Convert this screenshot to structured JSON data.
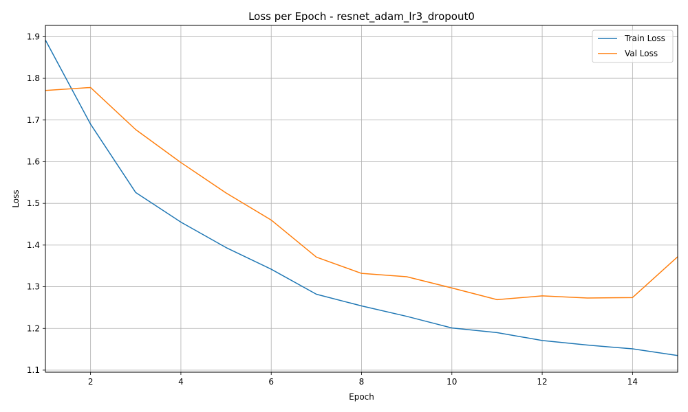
{
  "chart_data": {
    "type": "line",
    "title": "Loss per Epoch - resnet_adam_lr3_dropout0",
    "xlabel": "Epoch",
    "ylabel": "Loss",
    "xlim": [
      1,
      15
    ],
    "ylim": [
      1.095,
      1.927
    ],
    "xticks": [
      "2",
      "4",
      "6",
      "8",
      "10",
      "12",
      "14"
    ],
    "yticks": [
      "1.1",
      "1.2",
      "1.3",
      "1.4",
      "1.5",
      "1.6",
      "1.7",
      "1.8",
      "1.9"
    ],
    "grid": true,
    "legend_position": "top-right",
    "x": [
      1,
      2,
      3,
      4,
      5,
      6,
      7,
      8,
      9,
      10,
      11,
      12,
      13,
      14,
      15
    ],
    "series": [
      {
        "name": "Train Loss",
        "color": "#1f77b4",
        "values": [
          1.892,
          1.69,
          1.526,
          1.455,
          1.394,
          1.342,
          1.282,
          1.254,
          1.229,
          1.201,
          1.19,
          1.171,
          1.16,
          1.151,
          1.135
        ]
      },
      {
        "name": "Val Loss",
        "color": "#ff7f0e",
        "values": [
          1.771,
          1.778,
          1.677,
          1.598,
          1.525,
          1.46,
          1.371,
          1.332,
          1.324,
          1.297,
          1.269,
          1.278,
          1.273,
          1.274,
          1.372
        ]
      }
    ]
  }
}
